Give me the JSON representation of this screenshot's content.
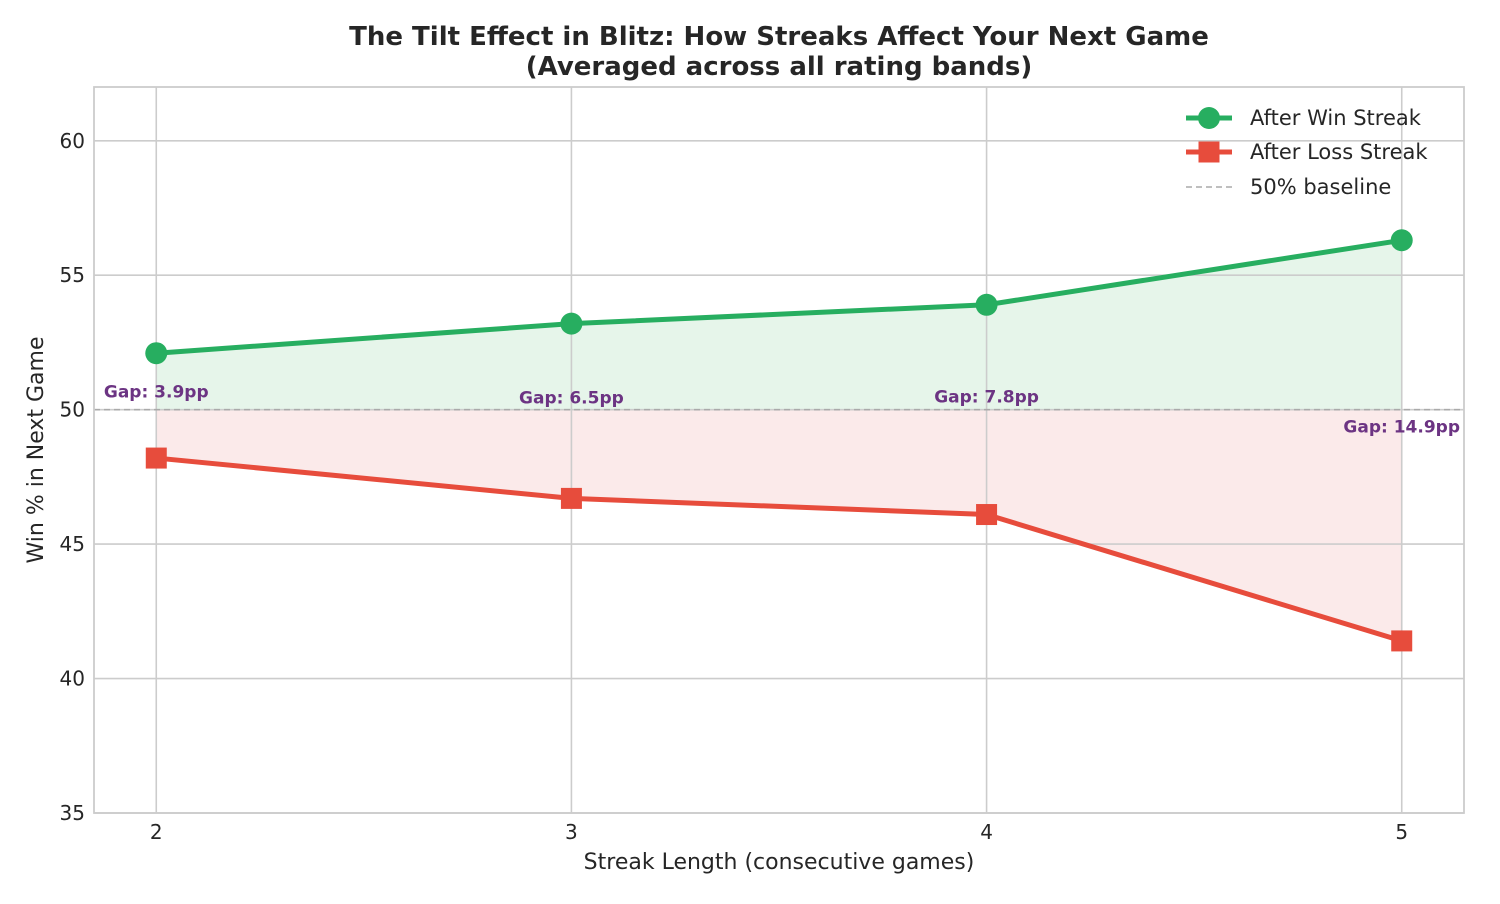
{
  "chart_data": {
    "type": "line",
    "title": "The Tilt Effect in Blitz: How Streaks Affect Your Next Game",
    "subtitle": "(Averaged across all rating bands)",
    "xlabel": "Streak Length (consecutive games)",
    "ylabel": "Win % in Next Game",
    "x": [
      2,
      3,
      4,
      5
    ],
    "x_tick_labels": [
      "2",
      "3",
      "4",
      "5"
    ],
    "xlim": [
      1.85,
      5.15
    ],
    "ylim": [
      35,
      62
    ],
    "y_ticks": [
      35,
      40,
      45,
      50,
      55,
      60
    ],
    "y_tick_labels": [
      "35",
      "40",
      "45",
      "50",
      "55",
      "60"
    ],
    "grid": true,
    "legend_position": "top-right",
    "series": [
      {
        "name": "After Win Streak",
        "values": [
          52.1,
          53.2,
          53.9,
          56.3
        ],
        "color": "#27ae60",
        "marker": "circle"
      },
      {
        "name": "After Loss Streak",
        "values": [
          48.2,
          46.7,
          46.1,
          41.4
        ],
        "color": "#e74c3c",
        "marker": "square"
      }
    ],
    "baseline": {
      "name": "50% baseline",
      "value": 50,
      "color": "#aaaaaa"
    },
    "annotations": [
      {
        "x": 2,
        "text": "Gap: 3.9pp"
      },
      {
        "x": 3,
        "text": "Gap: 6.5pp"
      },
      {
        "x": 4,
        "text": "Gap: 7.8pp"
      },
      {
        "x": 5,
        "text": "Gap: 14.9pp"
      }
    ],
    "annotation_color": "#6c3483",
    "fill_colors": {
      "win": "#e6f5ea",
      "loss": "#fbeaea"
    }
  }
}
